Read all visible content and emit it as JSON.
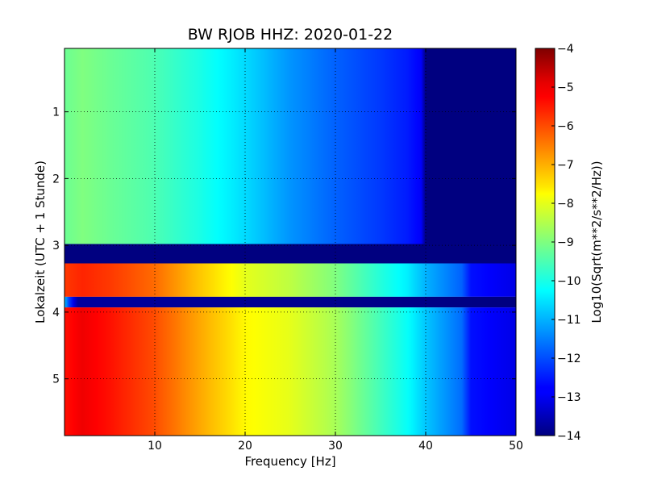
{
  "chart_data": {
    "type": "heatmap",
    "title": "BW RJOB HHZ: 2020-01-22",
    "xlabel": "Frequency [Hz]",
    "ylabel": "Lokalzeit (UTC + 1 Stunde)",
    "xlim": [
      0,
      50
    ],
    "ylim": [
      5.85,
      0.05
    ],
    "xticks": [
      10,
      20,
      30,
      40,
      50
    ],
    "yticks": [
      1,
      2,
      3,
      4,
      5
    ],
    "grid": true,
    "colormap": "jet",
    "colorbar": {
      "label": "Log10(Sqrt(m**2/s**2/Hz))",
      "min": -14,
      "max": -4,
      "ticks": [
        -4,
        -5,
        -6,
        -7,
        -8,
        -9,
        -10,
        -11,
        -12,
        -13,
        -14
      ]
    },
    "spectra": [
      {
        "time_range": [
          0.05,
          2.98
        ],
        "frequency_hz": [
          0,
          2,
          5,
          10,
          15,
          20,
          25,
          30,
          35,
          38,
          39.5,
          40,
          50
        ],
        "log10_psd": [
          -9.2,
          -9.0,
          -9.2,
          -9.5,
          -10.0,
          -10.6,
          -11.3,
          -11.8,
          -12.2,
          -12.5,
          -12.8,
          -14,
          -14
        ]
      },
      {
        "time_range": [
          2.98,
          3.27
        ],
        "frequency_hz": [
          0,
          50
        ],
        "log10_psd": [
          -14,
          -14
        ]
      },
      {
        "time_range": [
          3.27,
          3.77
        ],
        "frequency_hz": [
          0,
          2,
          5,
          10,
          15,
          20,
          25,
          30,
          35,
          38,
          40,
          44,
          45,
          50
        ],
        "log10_psd": [
          -5.8,
          -5.6,
          -5.8,
          -6.3,
          -7.2,
          -8.0,
          -8.4,
          -9.0,
          -9.9,
          -10.4,
          -11.0,
          -11.8,
          -12.6,
          -13.0
        ]
      },
      {
        "time_range": [
          3.77,
          3.93
        ],
        "frequency_hz": [
          0,
          0.6,
          1.5,
          50
        ],
        "log10_psd": [
          -10.8,
          -12.4,
          -13.7,
          -14
        ]
      },
      {
        "time_range": [
          3.93,
          5.85
        ],
        "frequency_hz": [
          0,
          2,
          5,
          10,
          15,
          20,
          25,
          30,
          35,
          38,
          40,
          44,
          45,
          50
        ],
        "log10_psd": [
          -5.4,
          -5.1,
          -5.4,
          -6.0,
          -6.9,
          -7.7,
          -8.0,
          -8.6,
          -9.6,
          -10.2,
          -10.8,
          -11.7,
          -12.6,
          -13.0
        ]
      }
    ]
  }
}
